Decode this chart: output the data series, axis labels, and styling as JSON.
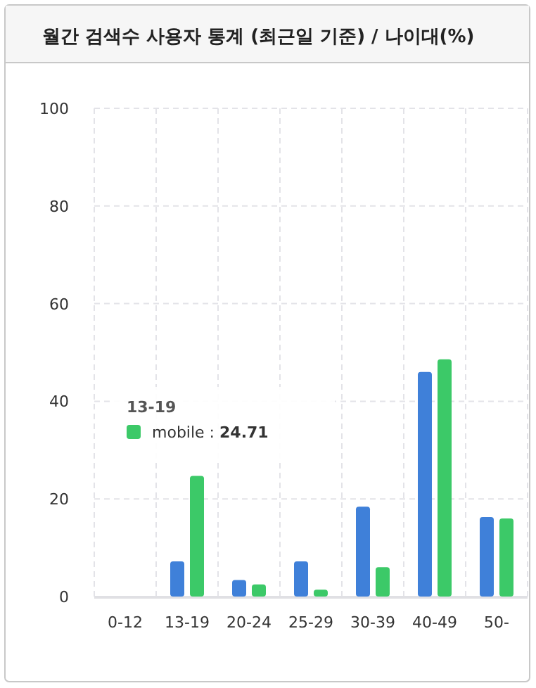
{
  "chart_data": {
    "type": "bar",
    "title": "월간 검색수 사용자 통계 (최근일 기준) / 나이대(%)",
    "categories": [
      "0-12",
      "13-19",
      "20-24",
      "25-29",
      "30-39",
      "40-49",
      "50-"
    ],
    "series": [
      {
        "color": "#3f80d9",
        "values": [
          0,
          7.2,
          3.4,
          7.2,
          18.4,
          46.0,
          16.3
        ]
      },
      {
        "color": "#3cc968",
        "values": [
          0,
          24.71,
          2.5,
          1.4,
          6.0,
          48.6,
          16.0
        ]
      }
    ],
    "annotations": [
      "13-19",
      "mobile : **24.71**"
    ],
    "ylim": [
      0,
      100
    ],
    "yticks": [
      0,
      20,
      40,
      60,
      80,
      100
    ],
    "grid": true
  }
}
